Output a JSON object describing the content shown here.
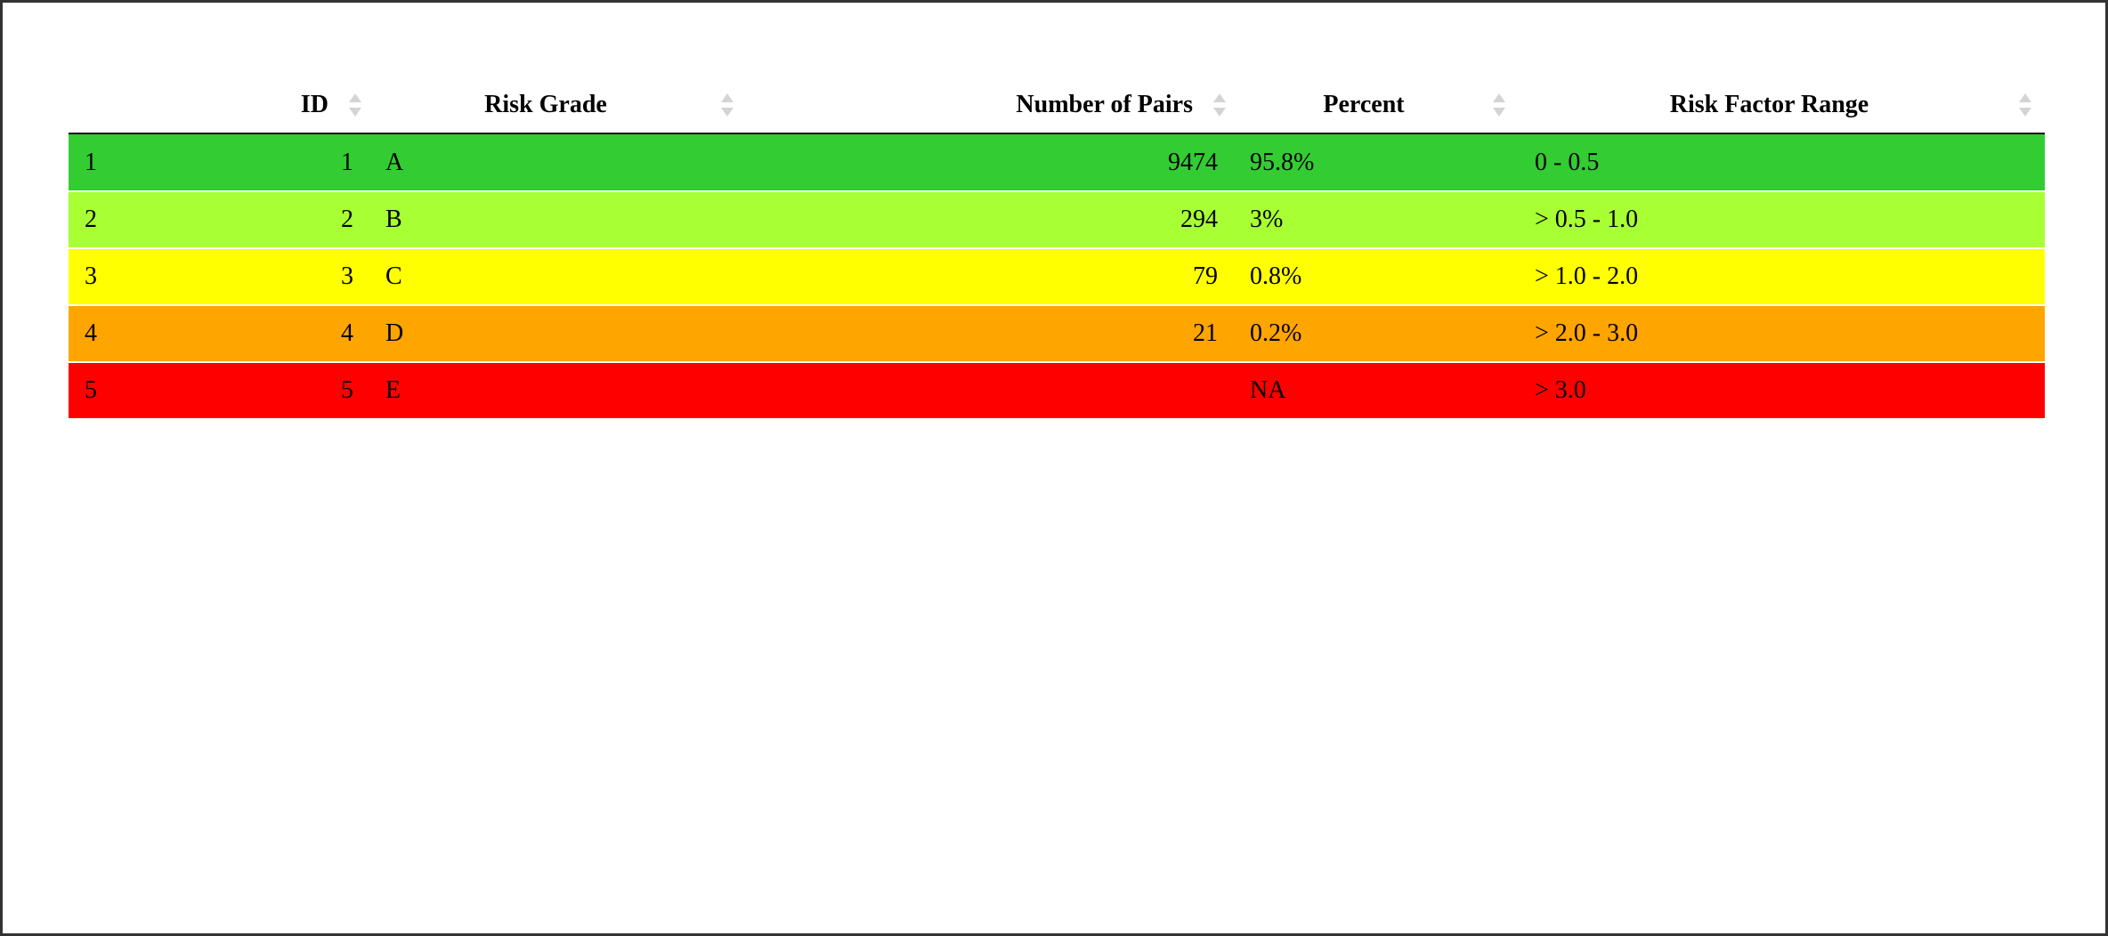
{
  "table": {
    "columns": [
      {
        "label": "",
        "sortable": false,
        "align": "left"
      },
      {
        "label": "ID",
        "sortable": true,
        "align": "right"
      },
      {
        "label": "Risk Grade",
        "sortable": true,
        "align": "center"
      },
      {
        "label": "Number of Pairs",
        "sortable": true,
        "align": "right"
      },
      {
        "label": "Percent",
        "sortable": true,
        "align": "center"
      },
      {
        "label": "Risk Factor Range",
        "sortable": true,
        "align": "center"
      }
    ],
    "rows": [
      {
        "rowname": "1",
        "id": "1",
        "grade": "A",
        "pairs": "9474",
        "percent": "95.8%",
        "range": "0 - 0.5",
        "color": "#33cc33"
      },
      {
        "rowname": "2",
        "id": "2",
        "grade": "B",
        "pairs": "294",
        "percent": "3%",
        "range": "> 0.5 - 1.0",
        "color": "#a8ff33"
      },
      {
        "rowname": "3",
        "id": "3",
        "grade": "C",
        "pairs": "79",
        "percent": "0.8%",
        "range": "> 1.0 - 2.0",
        "color": "#ffff00"
      },
      {
        "rowname": "4",
        "id": "4",
        "grade": "D",
        "pairs": "21",
        "percent": "0.2%",
        "range": "> 2.0 - 3.0",
        "color": "#ffa500"
      },
      {
        "rowname": "5",
        "id": "5",
        "grade": "E",
        "pairs": "",
        "percent": "NA",
        "range": "> 3.0",
        "color": "#ff0000"
      }
    ]
  }
}
